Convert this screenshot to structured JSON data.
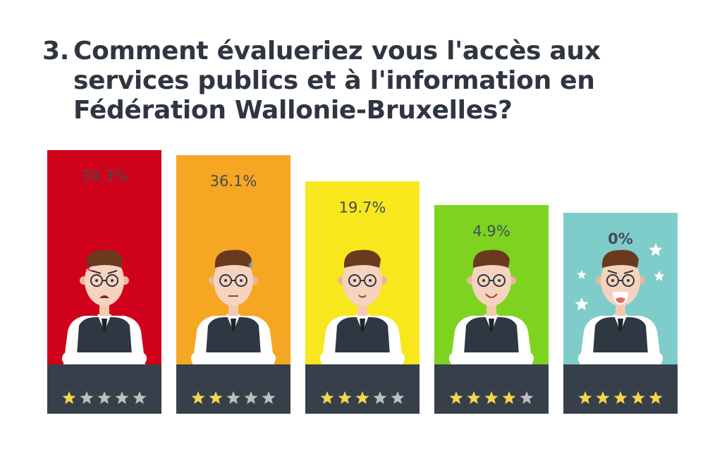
{
  "question": {
    "number": "3.",
    "text": "Comment évalueriez vous l'accès aux\nservices publics et à l'information en\nFédération Wallonie-Bruxelles?"
  },
  "colors": {
    "bar_colors": [
      "#d0021b",
      "#f5a623",
      "#f8e71c",
      "#7ed321",
      "#7fcdcb"
    ],
    "footer": "#37404a",
    "star_on": "#f6d64a",
    "star_off": "#bfbfbf",
    "label_text": "#444b55"
  },
  "chart_data": {
    "type": "bar",
    "categories": [
      "1 étoile",
      "2 étoiles",
      "3 étoiles",
      "4 étoiles",
      "5 étoiles"
    ],
    "values": [
      39.3,
      36.1,
      19.7,
      4.9,
      0
    ],
    "data_labels": [
      "39.3%",
      "36.1%",
      "19.7%",
      "4.9%",
      "0%"
    ],
    "stars_filled": [
      1,
      2,
      3,
      4,
      5
    ],
    "stars_total": 5,
    "icons": [
      "angry-face-icon",
      "sweating-face-icon",
      "neutral-smile-icon",
      "smiling-face-icon",
      "laughing-face-icon"
    ],
    "ylim": [
      0,
      39.3
    ],
    "grid": false,
    "legend": "none"
  }
}
